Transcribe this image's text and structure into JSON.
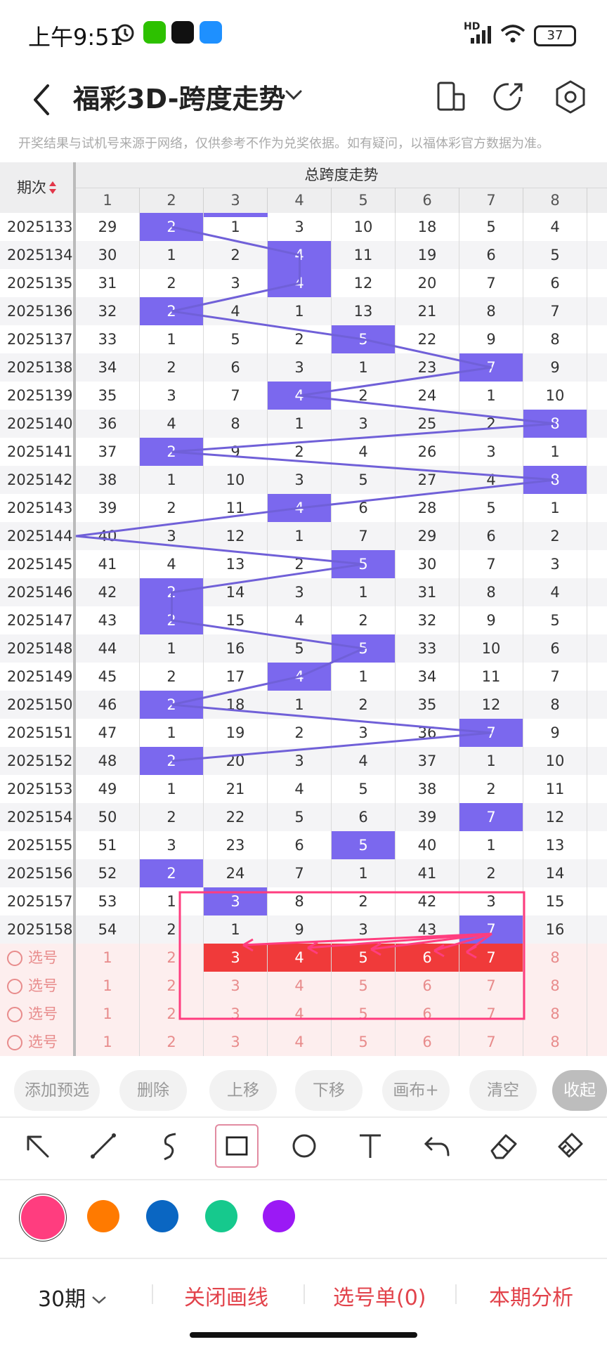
{
  "status": {
    "time": "上午9:51",
    "battery": "37",
    "network": "HD"
  },
  "header": {
    "title": "福彩3D-跨度走势"
  },
  "notice": "开奖结果与试机号来源于网络，仅供参考不作为兑奖依据。如有疑问，以福体彩官方数据为准。",
  "grid": {
    "col_issue": "期次",
    "group_title": "总跨度走势",
    "columns": [
      "1",
      "2",
      "3",
      "4",
      "5",
      "6",
      "7",
      "8"
    ],
    "rows": [
      {
        "issue": "2025133",
        "cells": [
          "29",
          "2",
          "1",
          "3",
          "10",
          "18",
          "5",
          "4"
        ],
        "hit": 1
      },
      {
        "issue": "2025134",
        "cells": [
          "30",
          "1",
          "2",
          "4",
          "11",
          "19",
          "6",
          "5"
        ],
        "hit": 3
      },
      {
        "issue": "2025135",
        "cells": [
          "31",
          "2",
          "3",
          "4",
          "12",
          "20",
          "7",
          "6"
        ],
        "hit": 3
      },
      {
        "issue": "2025136",
        "cells": [
          "32",
          "2",
          "4",
          "1",
          "13",
          "21",
          "8",
          "7"
        ],
        "hit": 1
      },
      {
        "issue": "2025137",
        "cells": [
          "33",
          "1",
          "5",
          "2",
          "5",
          "22",
          "9",
          "8"
        ],
        "hit": 4
      },
      {
        "issue": "2025138",
        "cells": [
          "34",
          "2",
          "6",
          "3",
          "1",
          "23",
          "7",
          "9"
        ],
        "hit": 6
      },
      {
        "issue": "2025139",
        "cells": [
          "35",
          "3",
          "7",
          "4",
          "2",
          "24",
          "1",
          "10"
        ],
        "hit": 3
      },
      {
        "issue": "2025140",
        "cells": [
          "36",
          "4",
          "8",
          "1",
          "3",
          "25",
          "2",
          "8"
        ],
        "hit": 7
      },
      {
        "issue": "2025141",
        "cells": [
          "37",
          "2",
          "9",
          "2",
          "4",
          "26",
          "3",
          "1"
        ],
        "hit": 1
      },
      {
        "issue": "2025142",
        "cells": [
          "38",
          "1",
          "10",
          "3",
          "5",
          "27",
          "4",
          "8"
        ],
        "hit": 7
      },
      {
        "issue": "2025143",
        "cells": [
          "39",
          "2",
          "11",
          "4",
          "6",
          "28",
          "5",
          "1"
        ],
        "hit": 3
      },
      {
        "issue": "2025144",
        "cells": [
          "40",
          "3",
          "12",
          "1",
          "7",
          "29",
          "6",
          "2"
        ],
        "hit": -1
      },
      {
        "issue": "2025145",
        "cells": [
          "41",
          "4",
          "13",
          "2",
          "5",
          "30",
          "7",
          "3"
        ],
        "hit": 4
      },
      {
        "issue": "2025146",
        "cells": [
          "42",
          "2",
          "14",
          "3",
          "1",
          "31",
          "8",
          "4"
        ],
        "hit": 1
      },
      {
        "issue": "2025147",
        "cells": [
          "43",
          "2",
          "15",
          "4",
          "2",
          "32",
          "9",
          "5"
        ],
        "hit": 1
      },
      {
        "issue": "2025148",
        "cells": [
          "44",
          "1",
          "16",
          "5",
          "5",
          "33",
          "10",
          "6"
        ],
        "hit": 4
      },
      {
        "issue": "2025149",
        "cells": [
          "45",
          "2",
          "17",
          "4",
          "1",
          "34",
          "11",
          "7"
        ],
        "hit": 3
      },
      {
        "issue": "2025150",
        "cells": [
          "46",
          "2",
          "18",
          "1",
          "2",
          "35",
          "12",
          "8"
        ],
        "hit": 1
      },
      {
        "issue": "2025151",
        "cells": [
          "47",
          "1",
          "19",
          "2",
          "3",
          "36",
          "7",
          "9"
        ],
        "hit": 6
      },
      {
        "issue": "2025152",
        "cells": [
          "48",
          "2",
          "20",
          "3",
          "4",
          "37",
          "1",
          "10"
        ],
        "hit": 1
      },
      {
        "issue": "2025153",
        "cells": [
          "49",
          "1",
          "21",
          "4",
          "5",
          "38",
          "2",
          "11"
        ],
        "hit": 8
      },
      {
        "issue": "2025154",
        "cells": [
          "50",
          "2",
          "22",
          "5",
          "6",
          "39",
          "7",
          "12"
        ],
        "hit": 6
      },
      {
        "issue": "2025155",
        "cells": [
          "51",
          "3",
          "23",
          "6",
          "5",
          "40",
          "1",
          "13"
        ],
        "hit": 4
      },
      {
        "issue": "2025156",
        "cells": [
          "52",
          "2",
          "24",
          "7",
          "1",
          "41",
          "2",
          "14"
        ],
        "hit": 1
      },
      {
        "issue": "2025157",
        "cells": [
          "53",
          "1",
          "3",
          "8",
          "2",
          "42",
          "3",
          "15"
        ],
        "hit": 2
      },
      {
        "issue": "2025158",
        "cells": [
          "54",
          "2",
          "1",
          "9",
          "3",
          "43",
          "7",
          "16"
        ],
        "hit": 6
      }
    ],
    "pick_label": "选号",
    "pick_rows": [
      [
        "1",
        "2",
        "3",
        "4",
        "5",
        "6",
        "7",
        "8"
      ],
      [
        "1",
        "2",
        "3",
        "4",
        "5",
        "6",
        "7",
        "8"
      ],
      [
        "1",
        "2",
        "3",
        "4",
        "5",
        "6",
        "7",
        "8"
      ],
      [
        "1",
        "2",
        "3",
        "4",
        "5",
        "6",
        "7",
        "8"
      ]
    ]
  },
  "toolbar": {
    "buttons": [
      "添加预选",
      "删除",
      "上移",
      "下移",
      "画布+",
      "清空",
      "收起"
    ]
  },
  "tools": [
    "arrow-tool-icon",
    "line-tool-icon",
    "freehand-tool-icon",
    "rectangle-tool-icon",
    "circle-tool-icon",
    "text-tool-icon",
    "undo-icon",
    "eraser-icon",
    "clear-brush-icon"
  ],
  "palette": [
    "#ff3d7f",
    "#ff7a00",
    "#0a66c2",
    "#16c98d",
    "#9b19f5"
  ],
  "bottom": {
    "period": "30期",
    "close_lines": "关闭画线",
    "selection": "选号单(0)",
    "analysis": "本期分析"
  }
}
